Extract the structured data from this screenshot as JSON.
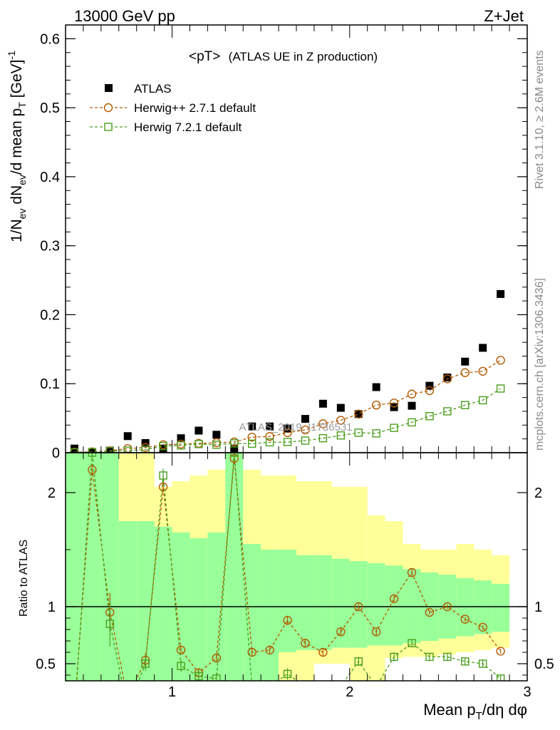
{
  "header": {
    "left": "13000 GeV pp",
    "right": "Z+Jet"
  },
  "side_labels": {
    "rivet": "Rivet 3.1.10, ≥ 2.6M events",
    "mcplots": "mcplots.cern.ch [arXiv:1306.3436]"
  },
  "plot_title": {
    "main": "<pT>",
    "detail": "(ATLAS UE in Z production)"
  },
  "watermark": "ATLAS_2019_I1736531",
  "chart_data": [
    {
      "type": "scatter",
      "panel": "main",
      "ylabel": "1/N_ev dN_ev/d mean p_T [GeV]^-1",
      "xlim": [
        0.4,
        3.0
      ],
      "ylim": [
        0,
        0.62
      ],
      "y_ticks": [
        "0",
        "0.1",
        "0.2",
        "0.3",
        "0.4",
        "0.5",
        "0.6"
      ],
      "x": [
        0.45,
        0.55,
        0.65,
        0.75,
        0.85,
        0.95,
        1.05,
        1.15,
        1.25,
        1.35,
        1.45,
        1.55,
        1.65,
        1.75,
        1.85,
        1.95,
        2.05,
        2.15,
        2.25,
        2.35,
        2.45,
        2.55,
        2.65,
        2.75,
        2.85
      ],
      "series": [
        {
          "name": "ATLAS",
          "color": "#000000",
          "marker": "filled-square",
          "values": [
            0.006,
            0.001,
            0.003,
            0.024,
            0.014,
            0.006,
            0.021,
            0.032,
            0.026,
            0.006,
            0.038,
            0.038,
            0.035,
            0.049,
            0.071,
            0.065,
            0.056,
            0.095,
            0.066,
            0.068,
            0.097,
            0.109,
            0.132,
            0.152,
            0.23
          ]
        },
        {
          "name": "Herwig++ 2.7.1 default",
          "color": "#b35900",
          "marker": "open-circle",
          "dashed": true,
          "values": [
            0.0008,
            0.0012,
            0.0028,
            0.006,
            0.0075,
            0.0115,
            0.0125,
            0.0135,
            0.0145,
            0.0155,
            0.0225,
            0.0235,
            0.029,
            0.033,
            0.042,
            0.047,
            0.056,
            0.069,
            0.072,
            0.085,
            0.09,
            0.107,
            0.116,
            0.118,
            0.134
          ]
        },
        {
          "name": "Herwig 7.2.1 default",
          "color": "#4a9e1e",
          "marker": "open-square",
          "dashed": true,
          "values": [
            0.0004,
            0.0009,
            0.0022,
            0.003,
            0.0045,
            0.0095,
            0.0105,
            0.0125,
            0.0115,
            0.0135,
            0.013,
            0.015,
            0.0155,
            0.0175,
            0.021,
            0.025,
            0.029,
            0.028,
            0.036,
            0.044,
            0.053,
            0.06,
            0.069,
            0.076,
            0.093
          ]
        }
      ]
    },
    {
      "type": "line",
      "panel": "ratio",
      "ylabel": "Ratio to ATLAS",
      "xlabel": "Mean p_T/dη dφ",
      "xlim": [
        0.4,
        3.0
      ],
      "ylim": [
        0.35,
        2.35
      ],
      "y_ticks": [
        "0.5",
        "1",
        "2"
      ],
      "x_ticks": [
        "1",
        "2",
        "3"
      ],
      "reference_line": 1,
      "x": [
        0.45,
        0.55,
        0.65,
        0.75,
        0.85,
        0.95,
        1.05,
        1.15,
        1.25,
        1.35,
        1.45,
        1.55,
        1.65,
        1.75,
        1.85,
        1.95,
        2.05,
        2.15,
        2.25,
        2.35,
        2.45,
        2.55,
        2.65,
        2.75,
        2.85
      ],
      "bands": {
        "yellow_color": "#ffff99",
        "green_color": "#99ff99",
        "yellow_upper": [
          2.35,
          2.35,
          2.35,
          2.35,
          2.35,
          2.05,
          2.1,
          2.15,
          2.2,
          2.35,
          2.2,
          2.15,
          2.15,
          2.1,
          2.1,
          2.05,
          2.05,
          1.8,
          1.75,
          1.55,
          1.5,
          1.5,
          1.55,
          1.5,
          1.45
        ],
        "green_upper": [
          2.35,
          2.35,
          2.35,
          1.75,
          1.75,
          1.7,
          1.65,
          1.6,
          1.65,
          2.35,
          1.55,
          1.5,
          1.5,
          1.45,
          1.45,
          1.42,
          1.4,
          1.38,
          1.36,
          1.33,
          1.3,
          1.28,
          1.25,
          1.23,
          1.2
        ],
        "green_lower": [
          0.35,
          0.35,
          0.35,
          0.35,
          0.35,
          0.35,
          0.35,
          0.35,
          0.35,
          0.35,
          0.35,
          0.35,
          0.6,
          0.62,
          0.62,
          0.64,
          0.64,
          0.66,
          0.66,
          0.68,
          0.7,
          0.72,
          0.74,
          0.76,
          0.78
        ],
        "yellow_lower": [
          0.35,
          0.35,
          0.35,
          0.35,
          0.35,
          0.35,
          0.35,
          0.35,
          0.35,
          0.35,
          0.35,
          0.35,
          0.35,
          0.35,
          0.5,
          0.5,
          0.35,
          0.35,
          0.55,
          0.56,
          0.56,
          0.58,
          0.6,
          0.62,
          0.64
        ]
      },
      "series": [
        {
          "name": "Herwig++ 2.7.1 default",
          "color": "#b35900",
          "values": [
            0.1,
            2.2,
            0.95,
            0.2,
            0.53,
            2.05,
            0.62,
            0.42,
            0.55,
            2.3,
            0.6,
            0.62,
            0.88,
            0.68,
            0.6,
            0.78,
            1.0,
            0.78,
            1.07,
            1.3,
            0.95,
            1.0,
            0.89,
            0.82,
            0.61
          ],
          "errors": [
            0,
            0.05,
            0.17,
            0,
            0.06,
            0.05,
            0.04,
            0.04,
            0.04,
            0.05,
            0.03,
            0.03,
            0.04,
            0.03,
            0.03,
            0.03,
            0.03,
            0.03,
            0.03,
            0.03,
            0.02,
            0.02,
            0.02,
            0.02,
            0.02
          ]
        },
        {
          "name": "Herwig 7.2.1 default",
          "color": "#4a9e1e",
          "values": [
            0.05,
            2.35,
            0.85,
            0.1,
            0.5,
            2.15,
            0.48,
            0.39,
            0.37,
            2.35,
            0.3,
            0.3,
            0.41,
            0.3,
            0.3,
            0.3,
            0.52,
            0.3,
            0.56,
            0.68,
            0.56,
            0.56,
            0.52,
            0.5,
            0.37
          ],
          "errors": [
            0,
            0.05,
            0.2,
            0,
            0.06,
            0.06,
            0.05,
            0.05,
            0.05,
            0.05,
            0.04,
            0.04,
            0.05,
            0.04,
            0.04,
            0.04,
            0.04,
            0.04,
            0.04,
            0.03,
            0.03,
            0.03,
            0.03,
            0.03,
            0.03
          ]
        }
      ]
    }
  ]
}
